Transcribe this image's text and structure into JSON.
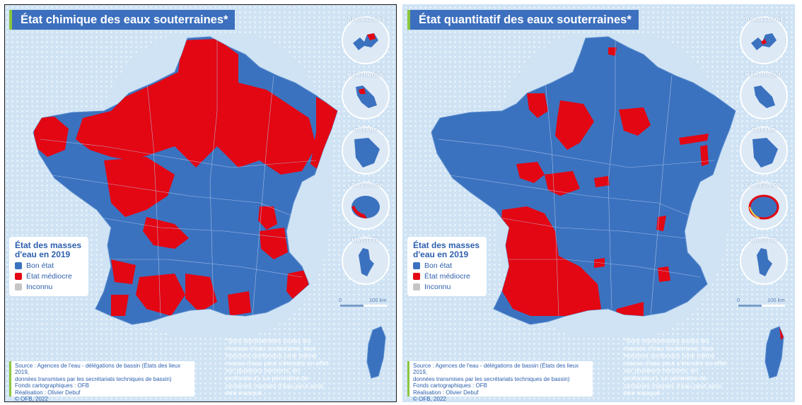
{
  "panels": [
    {
      "title": "État chimique des eaux souterraines*",
      "legend": {
        "title": "État des masses d'eau en 2019",
        "items": [
          {
            "label": "Bon état",
            "color": "#3b72bf"
          },
          {
            "label": "État médiocre",
            "color": "#e30613"
          },
          {
            "label": "Inconnu",
            "color": "#c6c6c6"
          }
        ]
      },
      "insets": [
        "GUADELOUPE",
        "MARTINIQUE",
        "GUYANE",
        "LA RÉUNION",
        "MAYOTTE"
      ],
      "scale": {
        "zero": "0",
        "max": "100 km"
      },
      "source": {
        "line1": "Source : Agences de l'eau - délégations de bassin (États des lieux 2019,",
        "line2": "données transmises par les secrétariats techniques de bassin)",
        "line3": "Fonds cartographiques : OFB",
        "line4": "Réalisation : Olivier Debuf",
        "line5": "© OFB, 2022"
      },
      "note": "*Sont représentées toutes les masses d'eau souterraine, tous horizons confondus (une même masse d'eau peut s'étendre en effet sur plusieurs horizons, en profondeur). Le périmètre de certaines masses d'eau peut ainsi être masqué."
    },
    {
      "title": "État quantitatif des eaux souterraines*",
      "legend": {
        "title": "État des masses d'eau en 2019",
        "items": [
          {
            "label": "Bon état",
            "color": "#3b72bf"
          },
          {
            "label": "État médiocre",
            "color": "#e30613"
          },
          {
            "label": "Inconnu",
            "color": "#c6c6c6"
          }
        ]
      },
      "insets": [
        "GUADELOUPE",
        "MARTINIQUE",
        "GUYANE",
        "LA RÉUNION",
        "MAYOTTE"
      ],
      "scale": {
        "zero": "0",
        "max": "100 km"
      },
      "source": {
        "line1": "Source : Agences de l'eau - délégations de bassin (États des lieux 2019,",
        "line2": "données transmises par les secrétariats techniques de bassin)",
        "line3": "Fonds cartographiques : OFB",
        "line4": "Réalisation : Olivier Debuf",
        "line5": "© OFB, 2022"
      },
      "note": "*Sont représentées toutes les masses d'eau souterraine, tous horizons confondus (une même masse d'eau peut s'étendre en effet sur plusieurs horizons, en profondeur). Le périmètre de certaines masses d'eau peut ainsi être masqué."
    }
  ]
}
